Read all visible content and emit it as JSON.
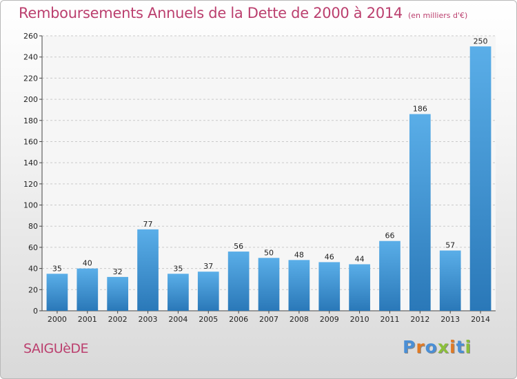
{
  "header": {
    "title": "Remboursements Annuels de la Dette de 2000 à 2014",
    "subtitle": "(en milliers d'€)"
  },
  "footer": {
    "location": "SAIGUèDE",
    "logo": "Proxiti"
  },
  "colors": {
    "title": "#bb3f6e",
    "bar_top": "#5aaee8",
    "bar_bottom": "#2a78b8",
    "logo_letters": [
      "#4a8fd6",
      "#e07a25",
      "#4a8fd6",
      "#8bbf3a",
      "#e07a25",
      "#4a8fd6",
      "#8bbf3a"
    ]
  },
  "chart_data": {
    "type": "bar",
    "categories": [
      "2000",
      "2001",
      "2002",
      "2003",
      "2004",
      "2005",
      "2006",
      "2007",
      "2008",
      "2009",
      "2010",
      "2011",
      "2012",
      "2013",
      "2014"
    ],
    "values": [
      35,
      40,
      32,
      77,
      35,
      37,
      56,
      50,
      48,
      46,
      44,
      66,
      186,
      57,
      250
    ],
    "ylim": [
      0,
      260
    ],
    "yticks": [
      0,
      20,
      40,
      60,
      80,
      100,
      120,
      140,
      160,
      180,
      200,
      220,
      240,
      260
    ],
    "grid": true,
    "data_labels": true
  }
}
